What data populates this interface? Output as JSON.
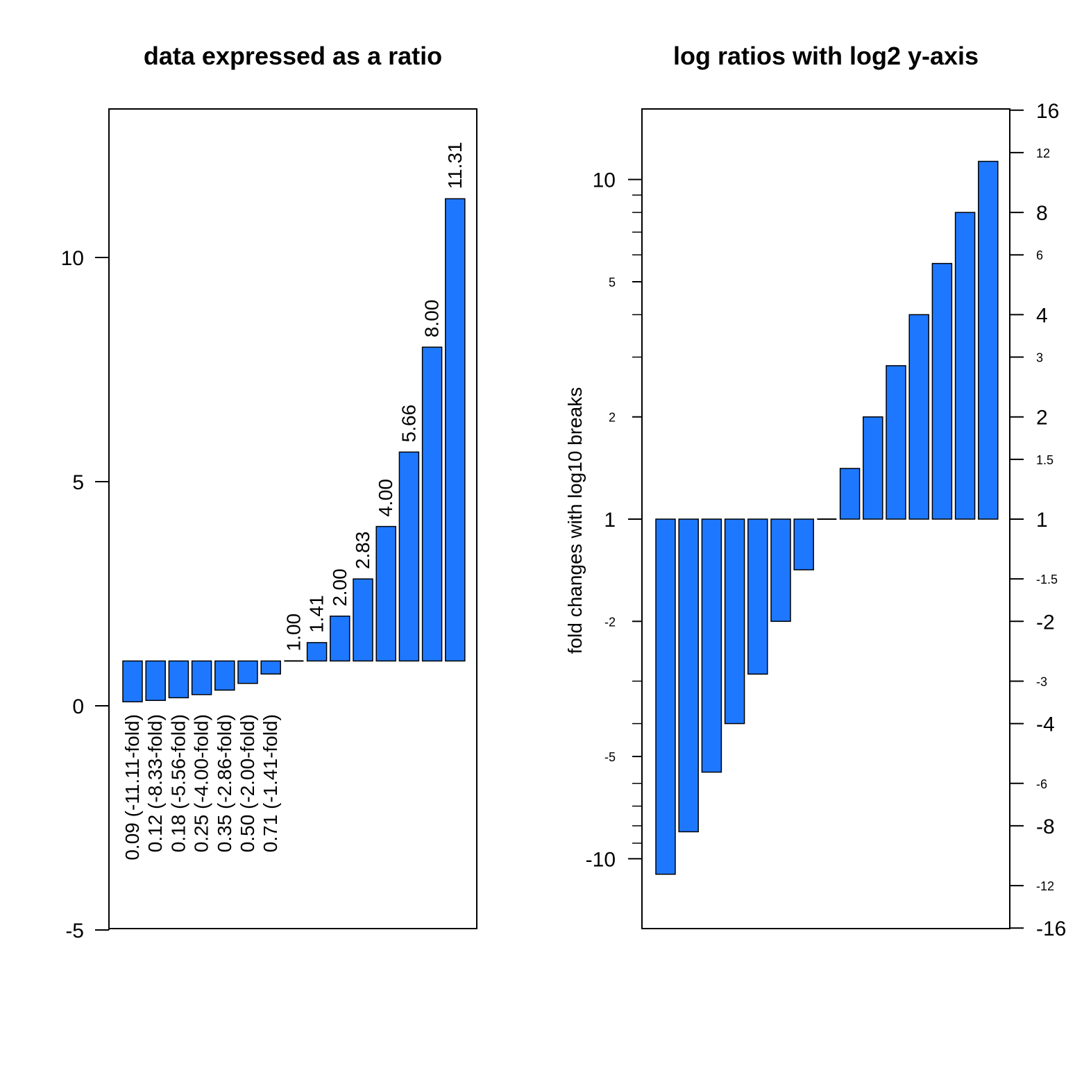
{
  "chart_data": [
    {
      "type": "bar",
      "title": "data expressed as a ratio",
      "xlabel": "",
      "ylabel": "",
      "ylim": [
        -5,
        13.3
      ],
      "y_ticks": [
        "-5",
        "0",
        "5",
        "10"
      ],
      "baseline": 1,
      "values": [
        0.09,
        0.12,
        0.18,
        0.25,
        0.35,
        0.5,
        0.71,
        1.0,
        1.41,
        2.0,
        2.83,
        4.0,
        5.66,
        8.0,
        11.31
      ],
      "bar_labels": [
        "0.09 (-11.11-fold)",
        "0.12 (-8.33-fold)",
        "0.18 (-5.56-fold)",
        "0.25 (-4.00-fold)",
        "0.35 (-2.86-fold)",
        "0.50 (-2.00-fold)",
        "0.71 (-1.41-fold)",
        "1.00",
        "1.41",
        "2.00",
        "2.83",
        "4.00",
        "5.66",
        "8.00",
        "11.31"
      ],
      "color": "#1e78ff",
      "grid": false
    },
    {
      "type": "bar",
      "title": "log ratios with log2 y-axis",
      "xlabel": "",
      "ylabel": "fold changes with log10 breaks",
      "y_scale": "log2 fold change",
      "ylim": [
        -4.0,
        4.0
      ],
      "baseline": 0,
      "values": [
        -11.11,
        -8.33,
        -5.56,
        -4.0,
        -2.86,
        -2.0,
        -1.41,
        1.0,
        1.41,
        2.0,
        2.83,
        4.0,
        5.66,
        8.0,
        11.31
      ],
      "left_axis_ticks": [
        {
          "label": "10",
          "value": 10,
          "size": "large"
        },
        {
          "label": "5",
          "value": 5,
          "size": "small"
        },
        {
          "label": "2",
          "value": 2,
          "size": "small"
        },
        {
          "label": "1",
          "value": 1,
          "size": "large"
        },
        {
          "label": "-2",
          "value": -2,
          "size": "small"
        },
        {
          "label": "-5",
          "value": -5,
          "size": "small"
        },
        {
          "label": "-10",
          "value": -10,
          "size": "large"
        }
      ],
      "left_axis_minor_ticks": [
        9,
        8,
        7,
        6,
        4,
        3,
        -3,
        -4,
        -6,
        -7,
        -8,
        -9
      ],
      "right_axis_ticks": [
        {
          "label": "16",
          "value": 16,
          "size": "large"
        },
        {
          "label": "12",
          "value": 12,
          "size": "small"
        },
        {
          "label": "8",
          "value": 8,
          "size": "large"
        },
        {
          "label": "6",
          "value": 6,
          "size": "small"
        },
        {
          "label": "4",
          "value": 4,
          "size": "large"
        },
        {
          "label": "3",
          "value": 3,
          "size": "small"
        },
        {
          "label": "2",
          "value": 2,
          "size": "large"
        },
        {
          "label": "1.5",
          "value": 1.5,
          "size": "small"
        },
        {
          "label": "1",
          "value": 1,
          "size": "large"
        },
        {
          "label": "-1.5",
          "value": -1.5,
          "size": "small"
        },
        {
          "label": "-2",
          "value": -2,
          "size": "large"
        },
        {
          "label": "-3",
          "value": -3,
          "size": "small"
        },
        {
          "label": "-4",
          "value": -4,
          "size": "large"
        },
        {
          "label": "-6",
          "value": -6,
          "size": "small"
        },
        {
          "label": "-8",
          "value": -8,
          "size": "large"
        },
        {
          "label": "-12",
          "value": -12,
          "size": "small"
        },
        {
          "label": "-16",
          "value": -16,
          "size": "large"
        }
      ],
      "color": "#1e78ff",
      "grid": false
    }
  ]
}
